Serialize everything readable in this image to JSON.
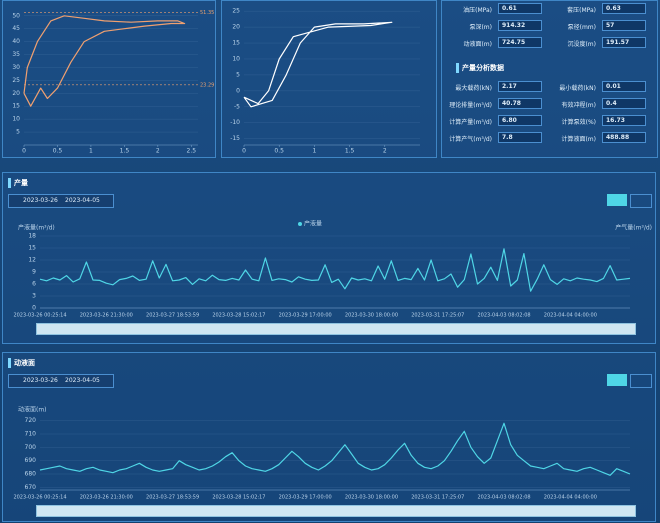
{
  "chart_data": [
    {
      "type": "line",
      "color": "#f0a070",
      "x": [
        0,
        0.05,
        0.2,
        0.4,
        0.6,
        0.9,
        1.2,
        1.6,
        2.0,
        2.3,
        2.4,
        2.2,
        1.8,
        1.5,
        1.2,
        0.9,
        0.7,
        0.5,
        0.35,
        0.25,
        0.1,
        0
      ],
      "values": [
        20,
        30,
        40,
        48,
        50,
        49,
        48,
        47.5,
        48,
        48,
        47,
        47,
        46,
        45,
        44,
        40,
        32,
        22,
        18,
        22,
        15,
        20
      ],
      "xlim": [
        0,
        2.6
      ],
      "xticks": [
        0,
        0.5,
        1,
        1.5,
        2,
        2.5
      ],
      "ylim": [
        0,
        53
      ],
      "yticks": [
        5,
        10,
        15,
        20,
        25,
        30,
        35,
        40,
        45,
        50
      ],
      "ref_lines": [
        51.35,
        23.29
      ]
    },
    {
      "type": "line",
      "color": "#ffffff",
      "x": [
        0,
        0.1,
        0.4,
        0.6,
        0.8,
        1.0,
        1.3,
        1.7,
        2.1,
        1.8,
        1.2,
        0.7,
        0.5,
        0.35,
        0.2,
        0
      ],
      "values": [
        -2,
        -5,
        -3,
        5,
        15,
        20,
        21,
        21,
        21.5,
        20.5,
        20,
        17,
        10,
        0,
        -4,
        -2
      ],
      "xlim": [
        0,
        2.5
      ],
      "xticks": [
        0,
        0.5,
        1,
        1.5,
        2
      ],
      "ylim": [
        -17,
        26
      ],
      "yticks": [
        -15,
        -10,
        -5,
        0,
        5,
        10,
        15,
        20,
        25
      ]
    },
    {
      "type": "line",
      "title": "产量",
      "y_label": "产液量(m³/d)",
      "y2_label": "产气量(m³/d)",
      "date_start": "2023-03-26",
      "date_end": "2023-04-05",
      "categories": [
        "2023-03-26 00:25:14",
        null,
        null,
        null,
        null,
        null,
        null,
        null,
        null,
        null,
        "2023-03-26 21:30:00",
        null,
        null,
        null,
        null,
        null,
        null,
        null,
        null,
        null,
        "2023-03-27 18:53:59",
        null,
        null,
        null,
        null,
        null,
        null,
        null,
        null,
        null,
        "2023-03-28 15:02:17",
        null,
        null,
        null,
        null,
        null,
        null,
        null,
        null,
        null,
        "2023-03-29 17:00:00",
        null,
        null,
        null,
        null,
        null,
        null,
        null,
        null,
        null,
        "2023-03-30 18:00:00",
        null,
        null,
        null,
        null,
        null,
        null,
        null,
        null,
        null,
        "2023-03-31 17:25:07",
        null,
        null,
        null,
        null,
        null,
        null,
        null,
        null,
        null,
        "2023-04-03 08:02:08",
        null,
        null,
        null,
        null,
        null,
        null,
        null,
        null,
        null,
        "2023-04-04 04:00:00",
        null,
        null,
        null,
        null,
        null,
        null,
        null,
        null,
        null
      ],
      "series": [
        {
          "name": "产液量",
          "color": "#4fd6e6",
          "values": [
            7.2,
            6.8,
            7.5,
            7.0,
            8.1,
            6.5,
            7.3,
            11.5,
            7.0,
            6.9,
            6.2,
            5.8,
            7.1,
            7.4,
            8.0,
            6.9,
            7.2,
            11.8,
            7.5,
            10.9,
            6.8,
            7.0,
            7.6,
            5.9,
            7.3,
            6.8,
            8.2,
            7.1,
            6.9,
            7.4,
            7.0,
            9.5,
            7.2,
            6.8,
            12.5,
            6.9,
            7.3,
            7.1,
            6.5,
            7.8,
            7.2,
            6.9,
            7.0,
            10.8,
            6.4,
            7.2,
            4.8,
            7.5,
            7.0,
            7.3,
            6.8,
            10.5,
            7.2,
            11.8,
            6.9,
            7.4,
            7.1,
            9.9,
            7.0,
            12.0,
            6.8,
            7.3,
            8.5,
            5.2,
            7.1,
            13.5,
            6.0,
            7.4,
            10.2,
            6.9,
            14.8,
            5.5,
            7.0,
            13.6,
            4.2,
            7.2,
            10.8,
            7.1,
            5.9,
            7.3,
            6.8,
            7.5,
            7.2,
            7.0,
            6.6,
            7.4,
            10.6,
            7.0,
            7.2,
            7.4
          ]
        }
      ],
      "ylim": [
        0,
        18
      ],
      "yticks": [
        0,
        3,
        6,
        9,
        12,
        15,
        18
      ]
    },
    {
      "type": "line",
      "title": "动液面",
      "y_label": "动液面(m)",
      "date_start": "2023-03-26",
      "date_end": "2023-04-05",
      "categories": [
        "2023-03-26 00:25:14",
        null,
        null,
        null,
        null,
        null,
        null,
        null,
        null,
        null,
        "2023-03-26 21:30:00",
        null,
        null,
        null,
        null,
        null,
        null,
        null,
        null,
        null,
        "2023-03-27 18:53:59",
        null,
        null,
        null,
        null,
        null,
        null,
        null,
        null,
        null,
        "2023-03-28 15:02:17",
        null,
        null,
        null,
        null,
        null,
        null,
        null,
        null,
        null,
        "2023-03-29 17:00:00",
        null,
        null,
        null,
        null,
        null,
        null,
        null,
        null,
        null,
        "2023-03-30 18:00:00",
        null,
        null,
        null,
        null,
        null,
        null,
        null,
        null,
        null,
        "2023-03-31 17:25:07",
        null,
        null,
        null,
        null,
        null,
        null,
        null,
        null,
        null,
        "2023-04-03 08:02:08",
        null,
        null,
        null,
        null,
        null,
        null,
        null,
        null,
        null,
        "2023-04-04 04:00:00",
        null,
        null,
        null,
        null,
        null,
        null,
        null,
        null,
        null
      ],
      "series": [
        {
          "color": "#4fd6e6",
          "values": [
            683,
            684,
            685,
            686,
            684,
            683,
            682,
            684,
            685,
            683,
            682,
            681,
            683,
            684,
            686,
            688,
            685,
            683,
            682,
            683,
            684,
            690,
            687,
            685,
            683,
            684,
            686,
            689,
            693,
            696,
            690,
            686,
            684,
            683,
            682,
            684,
            687,
            692,
            697,
            693,
            688,
            685,
            683,
            686,
            690,
            696,
            702,
            695,
            688,
            685,
            683,
            684,
            687,
            692,
            698,
            703,
            694,
            688,
            685,
            684,
            686,
            690,
            697,
            705,
            712,
            700,
            693,
            688,
            692,
            705,
            718,
            702,
            694,
            690,
            686,
            685,
            684,
            686,
            688,
            684,
            683,
            682,
            684,
            685,
            683,
            681,
            679,
            684,
            682,
            680
          ]
        }
      ],
      "ylim": [
        668,
        722
      ],
      "yticks": [
        670,
        680,
        690,
        700,
        710,
        720
      ]
    }
  ],
  "params": {
    "rows1": [
      [
        "油压(MPa)",
        "0.61",
        "套压(MPa)",
        "0.63"
      ],
      [
        "泵深(m)",
        "914.32",
        "泵径(mm)",
        "57"
      ],
      [
        "动液面(m)",
        "724.75",
        "沉没度(m)",
        "191.57"
      ]
    ],
    "section": "产量分析数据",
    "rows2": [
      [
        "最大载荷(kN)",
        "2.17",
        "最小载荷(kN)",
        "0.01"
      ],
      [
        "理论排量(m³/d)",
        "40.78",
        "有效冲程(m)",
        "0.4"
      ],
      [
        "计算产量(m³/d)",
        "6.80",
        "计算泵效(%)",
        "16.73"
      ],
      [
        "计算产气(m³/d)",
        "7.8",
        "计算液面(m)",
        "488.88"
      ]
    ]
  }
}
